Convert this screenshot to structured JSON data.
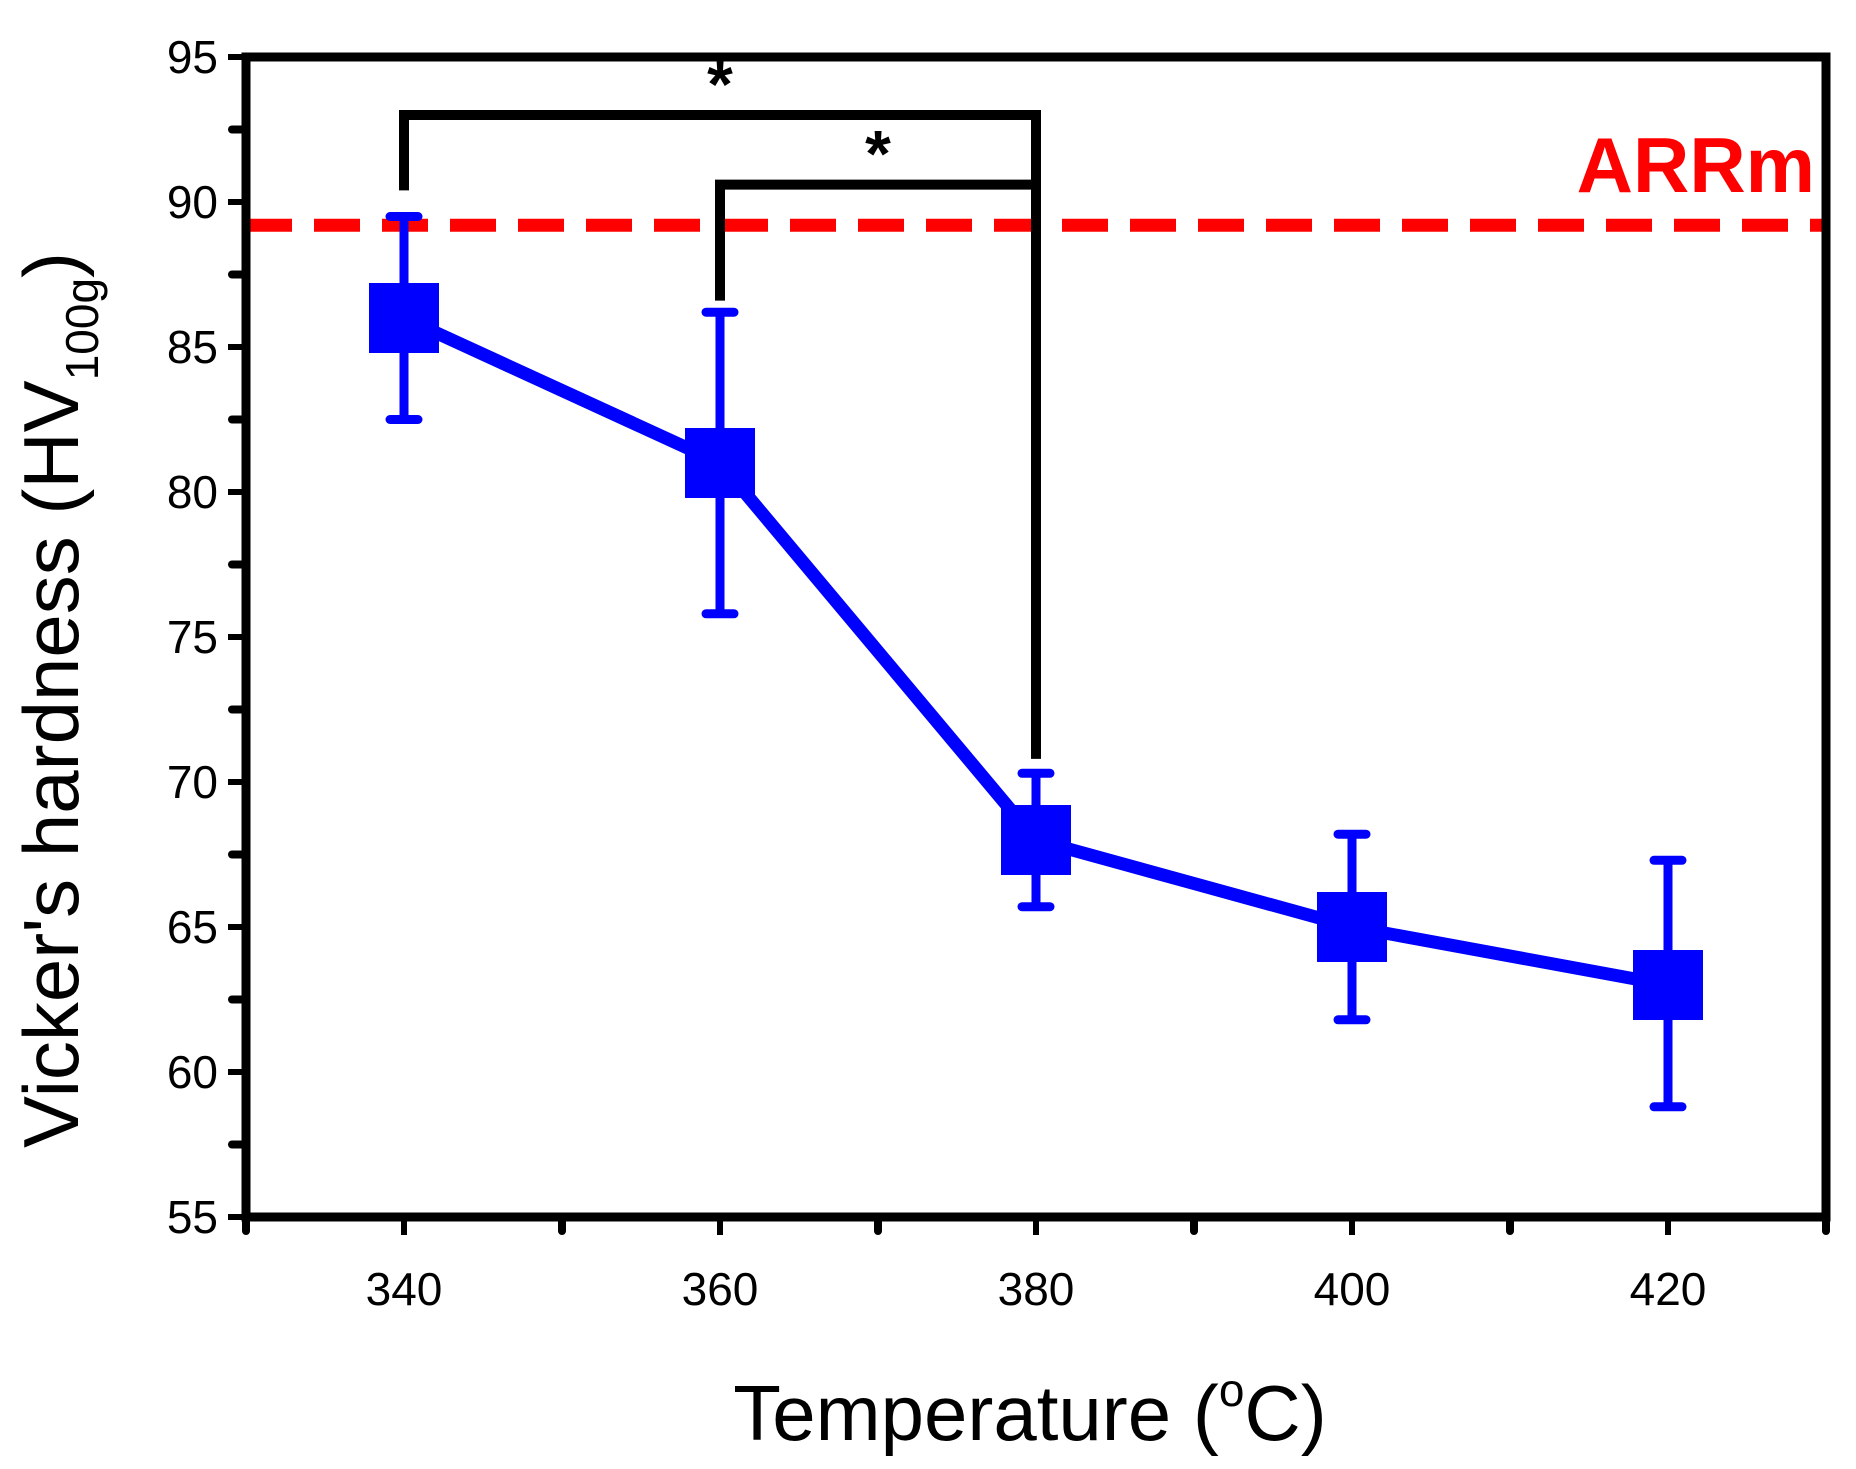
{
  "chart_data": {
    "type": "line",
    "title": "",
    "xlabel_main": "Temperature (",
    "xlabel_sup": "o",
    "xlabel_tail": "C)",
    "ylabel_main": "Vicker's hardness (HV",
    "ylabel_sub": "100g",
    "ylabel_tail": ")",
    "xlim": [
      330,
      430
    ],
    "ylim": [
      55,
      95
    ],
    "x_ticks": [
      "340",
      "360",
      "380",
      "400",
      "420"
    ],
    "y_ticks": [
      "55",
      "60",
      "65",
      "70",
      "75",
      "80",
      "85",
      "90",
      "95"
    ],
    "series": [
      {
        "name": "Vicker's hardness",
        "color": "#0000ff",
        "x": [
          340,
          360,
          380,
          400,
          420
        ],
        "values": [
          86.0,
          81.0,
          68.0,
          65.0,
          63.0
        ],
        "error_upper": [
          89.5,
          86.2,
          70.3,
          68.2,
          67.3
        ],
        "error_lower": [
          82.5,
          75.8,
          65.7,
          61.8,
          58.8
        ]
      }
    ],
    "reference_line": {
      "label": "ARRm",
      "value": 89.2,
      "color": "#ff0000",
      "style": "dashed"
    },
    "significance_brackets": [
      {
        "from_x": 340,
        "to_x": 380,
        "label": "*",
        "bracket_level": 93.0,
        "from_drop": 90.4,
        "to_drop": 70.8
      },
      {
        "from_x": 360,
        "to_x": 380,
        "label": "*",
        "bracket_level": 90.6,
        "from_drop": 86.6,
        "to_drop": 70.8
      }
    ],
    "grid": false
  }
}
